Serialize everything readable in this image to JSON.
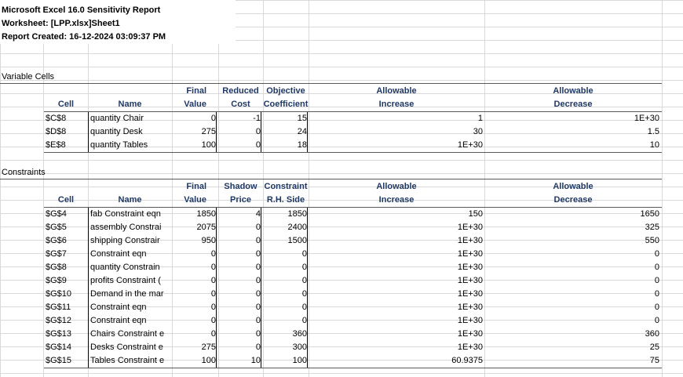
{
  "report": {
    "title": "Microsoft Excel 16.0 Sensitivity Report",
    "worksheet": "Worksheet: [LPP.xlsx]Sheet1",
    "created": "Report Created: 16-12-2024 03:09:37 PM"
  },
  "variable_cells": {
    "section_label": "Variable Cells",
    "headers": {
      "cell": "Cell",
      "name": "Name",
      "final_1": "Final",
      "final_2": "Value",
      "col3_1": "Reduced",
      "col3_2": "Cost",
      "col4_1": "Objective",
      "col4_2": "Coefficient",
      "inc_1": "Allowable",
      "inc_2": "Increase",
      "dec_1": "Allowable",
      "dec_2": "Decrease"
    },
    "rows": [
      [
        "$C$8",
        "quantity Chair",
        "0",
        "-1",
        "15",
        "1",
        "1E+30"
      ],
      [
        "$D$8",
        "quantity Desk",
        "275",
        "0",
        "24",
        "30",
        "1.5"
      ],
      [
        "$E$8",
        "quantity Tables",
        "100",
        "0",
        "18",
        "1E+30",
        "10"
      ]
    ]
  },
  "constraints": {
    "section_label": "Constraints",
    "headers": {
      "cell": "Cell",
      "name": "Name",
      "final_1": "Final",
      "final_2": "Value",
      "col3_1": "Shadow",
      "col3_2": "Price",
      "col4_1": "Constraint",
      "col4_2": "R.H. Side",
      "inc_1": "Allowable",
      "inc_2": "Increase",
      "dec_1": "Allowable",
      "dec_2": "Decrease"
    },
    "rows": [
      [
        "$G$4",
        "fab Constraint eqn",
        "1850",
        "4",
        "1850",
        "150",
        "1650"
      ],
      [
        "$G$5",
        "assembly Constrai",
        "2075",
        "0",
        "2400",
        "1E+30",
        "325"
      ],
      [
        "$G$6",
        "shipping Constrair",
        "950",
        "0",
        "1500",
        "1E+30",
        "550"
      ],
      [
        "$G$7",
        "Constraint eqn",
        "0",
        "0",
        "0",
        "1E+30",
        "0"
      ],
      [
        "$G$8",
        "quantity Constrain",
        "0",
        "0",
        "0",
        "1E+30",
        "0"
      ],
      [
        "$G$9",
        "profits Constraint (",
        "0",
        "0",
        "0",
        "1E+30",
        "0"
      ],
      [
        "$G$10",
        "Demand in the mar",
        "0",
        "0",
        "0",
        "1E+30",
        "0"
      ],
      [
        "$G$11",
        "Constraint eqn",
        "0",
        "0",
        "0",
        "1E+30",
        "0"
      ],
      [
        "$G$12",
        "Constraint eqn",
        "0",
        "0",
        "0",
        "1E+30",
        "0"
      ],
      [
        "$G$13",
        "Chairs Constraint e",
        "0",
        "0",
        "360",
        "1E+30",
        "360"
      ],
      [
        "$G$14",
        "Desks Constraint e",
        "275",
        "0",
        "300",
        "1E+30",
        "25"
      ],
      [
        "$G$15",
        "Tables Constraint e",
        "100",
        "10",
        "100",
        "60.9375",
        "75"
      ]
    ]
  },
  "colors": {
    "header_text": "#1f3864",
    "gridline": "#d9d9d9"
  }
}
